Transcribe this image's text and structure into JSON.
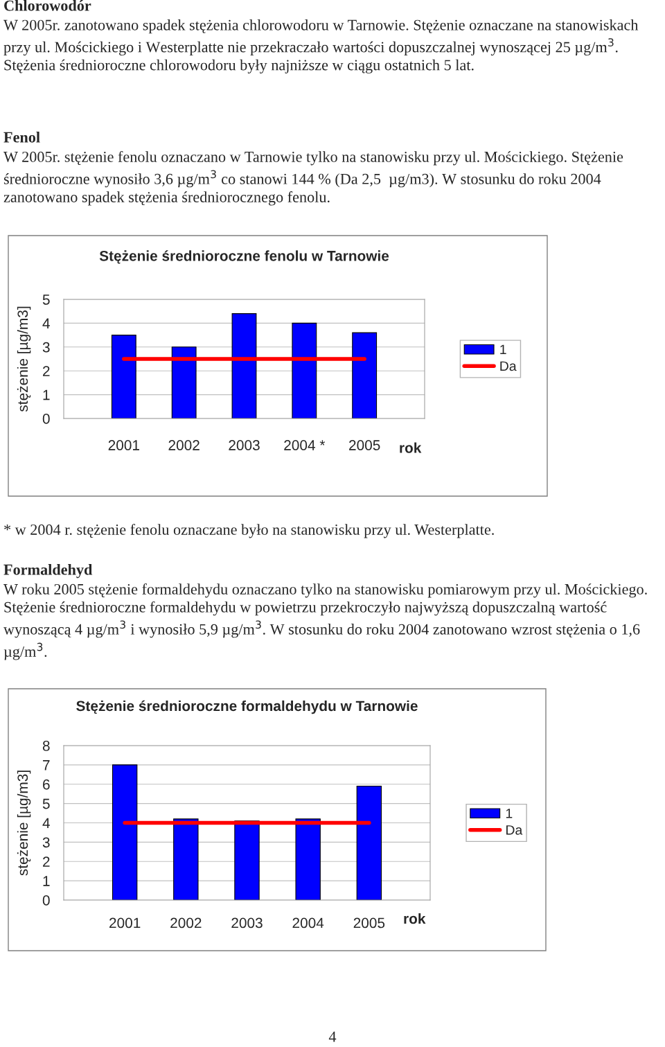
{
  "chart_data": [
    {
      "type": "bar",
      "title": "Stężenie średnioroczne fenolu w Tarnowie",
      "ylabel": "stężenie [µg/m3]",
      "xlabel": "rok",
      "categories": [
        "2001",
        "2002",
        "2003",
        "2004 *",
        "2005"
      ],
      "series": [
        {
          "name": "1",
          "color": "#0000ff",
          "values": [
            3.5,
            3.0,
            4.4,
            4.0,
            3.6
          ]
        },
        {
          "name": "Da",
          "type": "line",
          "color": "#ff0000",
          "values": [
            2.5,
            2.5,
            2.5,
            2.5,
            2.5
          ]
        }
      ],
      "ylim": [
        0,
        5
      ],
      "yticks": [
        0,
        1,
        2,
        3,
        4,
        5
      ],
      "grid": "y",
      "legend": "right",
      "marker": "none",
      "annotations": [
        "Chlorowodór",
        "W 2005r. zanotowano spadek stężenia chlorowodoru w Tarnowie. Stężenie oznaczane na stanowiskach przy ul. Mościckiego i Westerplatte nie przekraczało wartości dopuszczalnej wynoszącej 25 µg/m$^{3}$. Stężenia średnioroczne chlorowodoru były najniższe w ciągu ostatnich 5 lat.",
        "Fenol",
        "W 2005r. stężenie fenolu oznaczano w Tarnowie tylko na stanowisku przy ul. Mościckiego. Stężenie średnioroczne wynosiło 3,6 µg/m$^{3}$ co stanowi 144 % (Da 2,5  µg/m3). W stosunku do roku 2004 zanotowano spadek stężenia średniorocznego fenolu."
      ]
    },
    {
      "type": "bar",
      "title": "Stężenie średnioroczne formaldehydu w Tarnowie",
      "ylabel": "stężenie [µg/m3]",
      "xlabel": "rok",
      "categories": [
        "2001",
        "2002",
        "2003",
        "2004",
        "2005"
      ],
      "series": [
        {
          "name": "1",
          "color": "#0000ff",
          "values": [
            7.0,
            4.2,
            4.1,
            4.2,
            5.9
          ]
        },
        {
          "name": "Da",
          "type": "line",
          "color": "#ff0000",
          "values": [
            4,
            4,
            4,
            4,
            4
          ]
        }
      ],
      "ylim": [
        0,
        8
      ],
      "yticks": [
        0,
        1,
        2,
        3,
        4,
        5,
        6,
        7,
        8
      ],
      "grid": "y",
      "legend": "right",
      "marker": "none",
      "annotations": [
        "* w 2004 r. stężenie fenolu oznaczane było na stanowisku przy ul. Westerplatte.",
        "Formaldehyd",
        "W roku 2005 stężenie formaldehydu oznaczano tylko na stanowisku pomiarowym przy ul. Mościckiego. Stężenie średnioroczne formaldehydu w powietrzu przekroczyło najwyższą dopuszczalną wartość wynoszącą 4 µg/m$^{3}$ i wynosiło 5,9 µg/m$^{3}$. W stosunku do roku 2004 zanotowano wzrost stężenia o 1,6 µg/m$^{3}$.",
        "4"
      ]
    }
  ]
}
